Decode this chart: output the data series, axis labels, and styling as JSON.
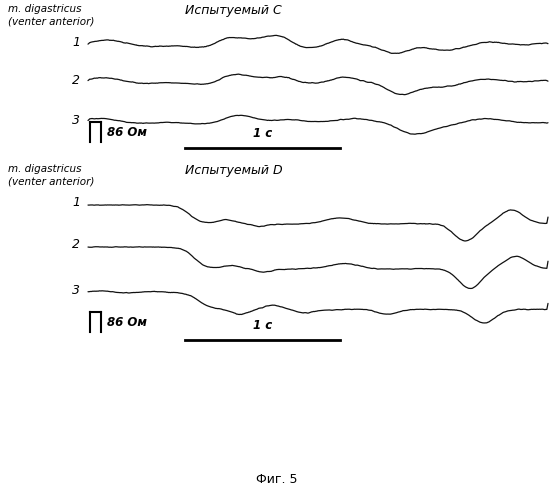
{
  "title_top_label1": "m. digastricus",
  "title_top_label2": "(venter anterior)",
  "title_top_subject": "Испытуемый C",
  "title_bottom_label1": "m. digastricus",
  "title_bottom_label2": "(venter anterior)",
  "title_bottom_subject": "Испытуемый D",
  "caption": "Фиг. 5",
  "scale_label": "86 Ом",
  "time_label": "1 с",
  "bg_color": "#ffffff",
  "line_color": "#111111",
  "track_labels": [
    "1",
    "2",
    "3"
  ]
}
